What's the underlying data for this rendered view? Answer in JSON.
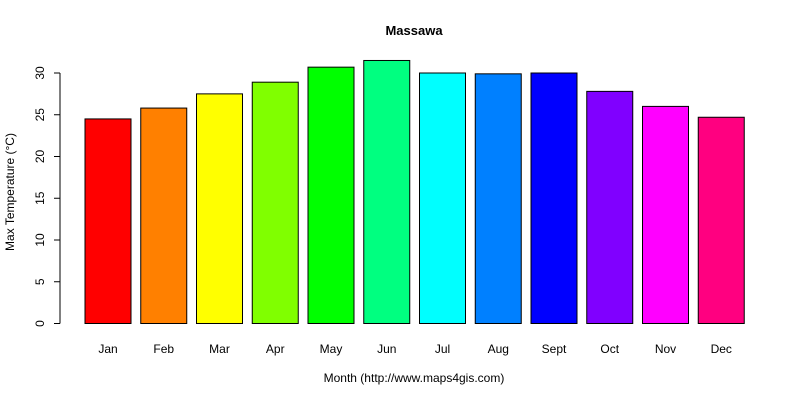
{
  "chart_data": {
    "type": "bar",
    "title": "Massawa",
    "xlabel": "Month (http://www.maps4gis.com)",
    "ylabel": "Max Temperature (°C)",
    "ylim": [
      0,
      30
    ],
    "yticks": [
      0,
      5,
      10,
      15,
      20,
      25,
      30
    ],
    "categories": [
      "Jan",
      "Feb",
      "Mar",
      "Apr",
      "May",
      "Jun",
      "Jul",
      "Aug",
      "Sept",
      "Oct",
      "Nov",
      "Dec"
    ],
    "values": [
      24.5,
      25.8,
      27.5,
      28.9,
      30.7,
      31.5,
      30.0,
      29.9,
      30.0,
      27.8,
      26.0,
      24.7
    ],
    "colors": [
      "#FF0000",
      "#FF8000",
      "#FFFF00",
      "#80FF00",
      "#00FF00",
      "#00FF80",
      "#00FFFF",
      "#0080FF",
      "#0000FF",
      "#8000FF",
      "#FF00FF",
      "#FF0080"
    ],
    "grid": false,
    "legend": "none"
  }
}
